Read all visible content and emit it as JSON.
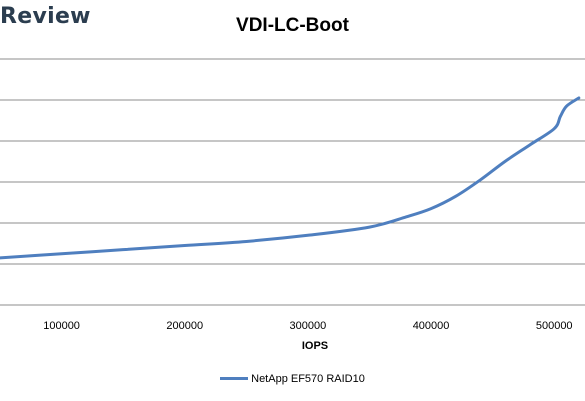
{
  "brand": {
    "label": "Review"
  },
  "chart_data": {
    "type": "line",
    "title": "VDI-LC-Boot",
    "xlabel": "IOPS",
    "ylabel": "",
    "xlim": [
      50000,
      525000
    ],
    "ylim": [
      0,
      7
    ],
    "x_ticks": [
      100000,
      200000,
      300000,
      400000,
      500000
    ],
    "x_tick_labels": [
      "100000",
      "200000",
      "300000",
      "400000",
      "500000"
    ],
    "y_gridlines": [
      1,
      2,
      3,
      4,
      5,
      6
    ],
    "grid": "horizontal",
    "legend_position": "bottom",
    "series": [
      {
        "name": "NetApp EF570 RAID10",
        "color": "#4f7fbf",
        "x": [
          50000,
          100000,
          150000,
          200000,
          250000,
          300000,
          350000,
          380000,
          400000,
          420000,
          440000,
          460000,
          480000,
          500000,
          505000,
          510000,
          520000
        ],
        "y": [
          1.15,
          1.25,
          1.35,
          1.45,
          1.55,
          1.7,
          1.9,
          2.15,
          2.35,
          2.65,
          3.05,
          3.5,
          3.9,
          4.3,
          4.6,
          4.85,
          5.05
        ]
      }
    ]
  }
}
